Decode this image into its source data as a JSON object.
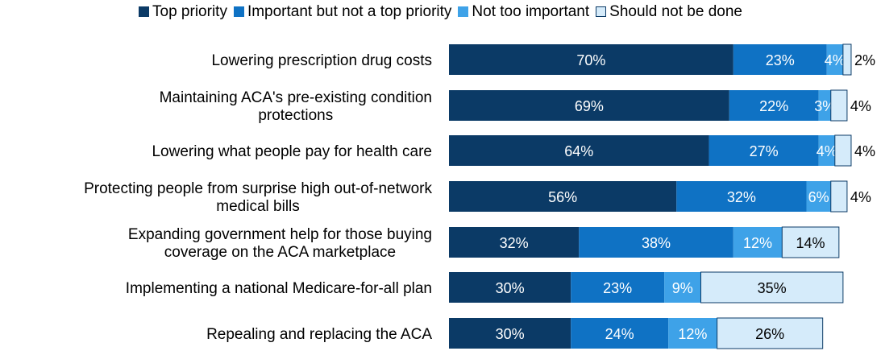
{
  "chart_data": {
    "type": "bar",
    "orientation": "horizontal",
    "stacked": true,
    "legend_position": "top",
    "grid": false,
    "xlim": [
      0,
      100
    ],
    "categories": [
      [
        "Lowering prescription drug costs"
      ],
      [
        "Maintaining ACA's pre-existing condition",
        "protections"
      ],
      [
        "Lowering what people pay for health care"
      ],
      [
        "Protecting people from surprise high out-of-network",
        "medical bills"
      ],
      [
        "Expanding government help for those buying",
        "coverage on the ACA marketplace"
      ],
      [
        "Implementing a national Medicare-for-all plan"
      ],
      [
        "Repealing and replacing the ACA"
      ]
    ],
    "series": [
      {
        "name": "Top priority",
        "color": "#0b3a66",
        "values": [
          70,
          69,
          64,
          56,
          32,
          30,
          30
        ]
      },
      {
        "name": "Important but not a top priority",
        "color": "#0f72c4",
        "values": [
          23,
          22,
          27,
          32,
          38,
          23,
          24
        ]
      },
      {
        "name": "Not too important",
        "color": "#3ea2e8",
        "values": [
          4,
          3,
          4,
          6,
          12,
          9,
          12
        ]
      },
      {
        "name": "Should not be done",
        "color": "#d5ebfa",
        "values": [
          2,
          4,
          4,
          4,
          14,
          35,
          26
        ]
      }
    ],
    "value_suffix": "%"
  }
}
